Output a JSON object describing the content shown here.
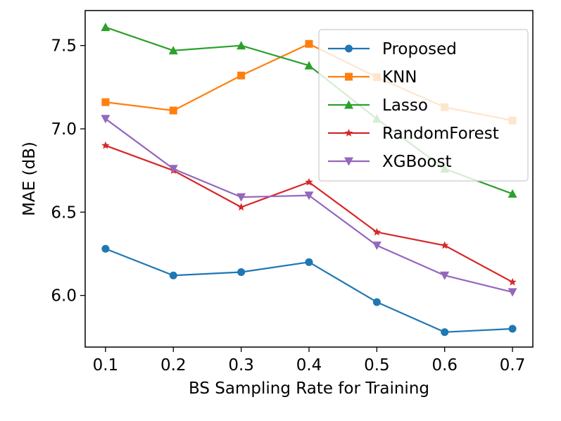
{
  "chart_data": {
    "type": "line",
    "xlabel": "BS Sampling Rate for Training",
    "ylabel": "MAE (dB)",
    "x": [
      0.1,
      0.2,
      0.3,
      0.4,
      0.5,
      0.6,
      0.7
    ],
    "x_ticks": [
      "0.1",
      "0.2",
      "0.3",
      "0.4",
      "0.5",
      "0.6",
      "0.7"
    ],
    "y_ticks": [
      "6.0",
      "6.5",
      "7.0",
      "7.5"
    ],
    "y_tick_values": [
      6.0,
      6.5,
      7.0,
      7.5
    ],
    "xlim": [
      0.07,
      0.73
    ],
    "ylim": [
      5.69,
      7.71
    ],
    "grid": false,
    "legend_position": "top-right",
    "series": [
      {
        "name": "Proposed",
        "color": "#1f77b4",
        "marker": "circle",
        "values": [
          6.28,
          6.12,
          6.14,
          6.2,
          5.96,
          5.78,
          5.8
        ]
      },
      {
        "name": "KNN",
        "color": "#ff7f0e",
        "marker": "square",
        "values": [
          7.16,
          7.11,
          7.32,
          7.51,
          7.31,
          7.13,
          7.05
        ]
      },
      {
        "name": "Lasso",
        "color": "#2ca02c",
        "marker": "triangle-up",
        "values": [
          7.61,
          7.47,
          7.5,
          7.38,
          7.06,
          6.76,
          6.61
        ]
      },
      {
        "name": "RandomForest",
        "color": "#d62728",
        "marker": "star",
        "values": [
          6.9,
          6.75,
          6.53,
          6.68,
          6.38,
          6.3,
          6.08
        ]
      },
      {
        "name": "XGBoost",
        "color": "#9467bd",
        "marker": "triangle-down",
        "values": [
          7.06,
          6.76,
          6.59,
          6.6,
          6.3,
          6.12,
          6.02
        ]
      }
    ]
  }
}
